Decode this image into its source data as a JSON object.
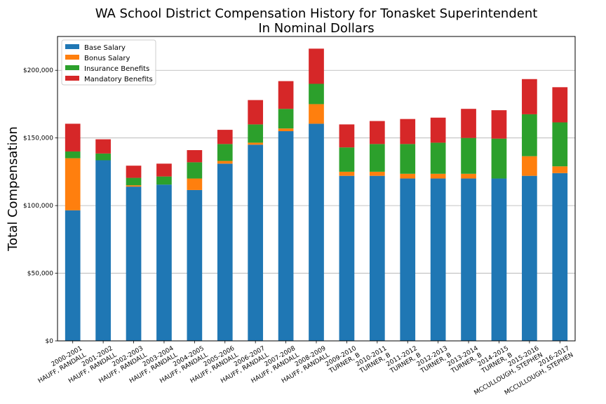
{
  "chart_data": {
    "type": "bar",
    "stacked": true,
    "title_line1": "WA School District Compensation History for Tonasket Superintendent",
    "title_line2": "In Nominal Dollars",
    "xlabel": "",
    "ylabel": "Total Compensation",
    "ylim": [
      0,
      225000
    ],
    "yticks": [
      0,
      50000,
      100000,
      150000,
      200000
    ],
    "ytick_labels": [
      "$0",
      "$50,000",
      "$100,000",
      "$150,000",
      "$200,000"
    ],
    "grid": "horizontal",
    "legend_position": "top-left",
    "categories": [
      [
        "2000-2001",
        "HAUFF, RANDALL"
      ],
      [
        "2001-2002",
        "HAUFF, RANDALL"
      ],
      [
        "2002-2003",
        "HAUFF, RANDALL"
      ],
      [
        "2003-2004",
        "HAUFF, RANDALL"
      ],
      [
        "2004-2005",
        "HAUFF, RANDALL"
      ],
      [
        "2005-2006",
        "HAUFF, RANDALL"
      ],
      [
        "2006-2007",
        "HAUFF, RANDALL"
      ],
      [
        "2007-2008",
        "HAUFF, RANDALL"
      ],
      [
        "2008-2009",
        "HAUFF, RANDALL"
      ],
      [
        "2009-2010",
        "TURNER, B"
      ],
      [
        "2010-2011",
        "TURNER, B"
      ],
      [
        "2011-2012",
        "TURNER, B"
      ],
      [
        "2012-2013",
        "TURNER, B"
      ],
      [
        "2013-2014",
        "TURNER, B"
      ],
      [
        "2014-2015",
        "TURNER, B"
      ],
      [
        "2015-2016",
        "MCCULLOUGH, STEPHEN"
      ],
      [
        "2016-2017",
        "MCCULLOUGH, STEPHEN"
      ]
    ],
    "series": [
      {
        "name": "Base Salary",
        "color": "#1f77b4",
        "values": [
          96500,
          133500,
          114000,
          115500,
          111500,
          131000,
          145000,
          155000,
          160500,
          122000,
          122000,
          120000,
          120000,
          120000,
          120000,
          122000,
          124000
        ]
      },
      {
        "name": "Bonus Salary",
        "color": "#ff7f0e",
        "values": [
          38500,
          0,
          1000,
          0,
          8500,
          2000,
          1500,
          2000,
          14500,
          3000,
          3000,
          3500,
          3500,
          3500,
          0,
          14500,
          5000
        ]
      },
      {
        "name": "Insurance Benefits",
        "color": "#2ca02c",
        "values": [
          5000,
          5000,
          5500,
          6000,
          12000,
          12500,
          13500,
          14500,
          15000,
          18000,
          20500,
          22000,
          23000,
          26500,
          29500,
          31000,
          32500
        ]
      },
      {
        "name": "Mandatory Benefits",
        "color": "#d62728",
        "values": [
          20500,
          10500,
          9000,
          9500,
          9000,
          10500,
          18000,
          20500,
          26000,
          17000,
          17000,
          18500,
          18500,
          21500,
          21000,
          26000,
          26000
        ]
      }
    ]
  }
}
